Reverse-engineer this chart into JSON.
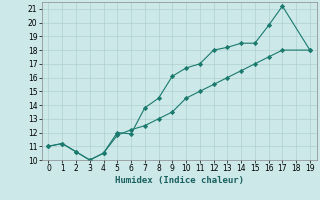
{
  "title": "",
  "xlabel": "Humidex (Indice chaleur)",
  "bg_color": "#cce8e8",
  "line_color": "#1a7a6e",
  "grid_color": "#b0d0d0",
  "line1_x": [
    0,
    1,
    2,
    3,
    4,
    5,
    6,
    7,
    8,
    9,
    10,
    11,
    12,
    13,
    14,
    15,
    16,
    17,
    19
  ],
  "line1_y": [
    11,
    11.2,
    10.6,
    10,
    10.5,
    12.0,
    11.9,
    13.8,
    14.5,
    16.1,
    16.7,
    17.0,
    18.0,
    18.2,
    18.5,
    18.5,
    19.8,
    21.2,
    18.0
  ],
  "line2_x": [
    0,
    1,
    2,
    3,
    4,
    5,
    6,
    7,
    8,
    9,
    10,
    11,
    12,
    13,
    14,
    15,
    16,
    17,
    19
  ],
  "line2_y": [
    11,
    11.2,
    10.6,
    10,
    10.5,
    11.8,
    12.2,
    12.5,
    13.0,
    13.5,
    14.5,
    15.0,
    15.5,
    16.0,
    16.5,
    17.0,
    17.5,
    18.0,
    18.0
  ],
  "xlim": [
    -0.5,
    19.5
  ],
  "ylim": [
    10,
    21.5
  ],
  "xticks": [
    0,
    1,
    2,
    3,
    4,
    5,
    6,
    7,
    8,
    9,
    10,
    11,
    12,
    13,
    14,
    15,
    16,
    17,
    18,
    19
  ],
  "yticks": [
    10,
    11,
    12,
    13,
    14,
    15,
    16,
    17,
    18,
    19,
    20,
    21
  ],
  "tick_fontsize": 5.5,
  "xlabel_fontsize": 6.5,
  "marker": "D",
  "markersize": 2.2,
  "linewidth": 0.8
}
